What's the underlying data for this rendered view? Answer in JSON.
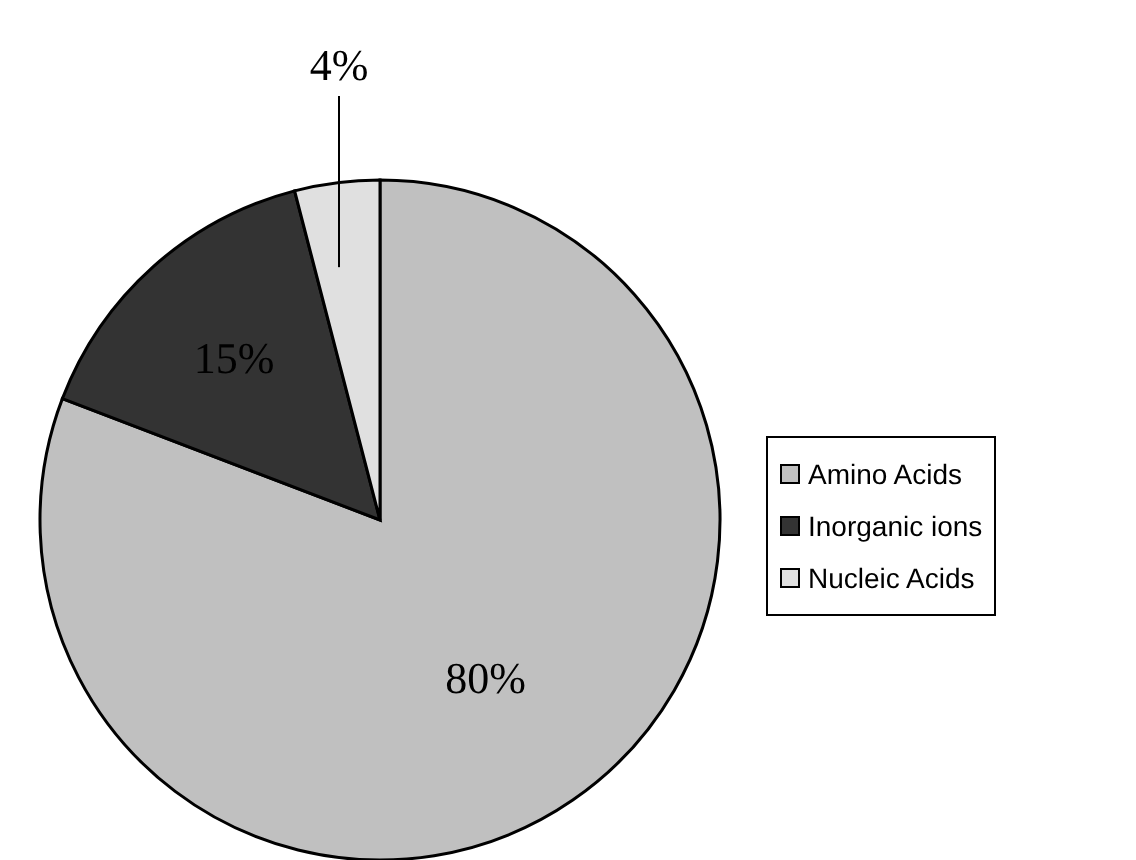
{
  "chart_data": {
    "type": "pie",
    "categories": [
      "Amino Acids",
      "Inorganic ions",
      "Nucleic Acids"
    ],
    "values": [
      80,
      15,
      4
    ],
    "colors": [
      "#c0c0c0",
      "#333333",
      "#e0e0e0"
    ],
    "value_labels": [
      "80%",
      "15%",
      "4%"
    ],
    "legend": "right"
  }
}
